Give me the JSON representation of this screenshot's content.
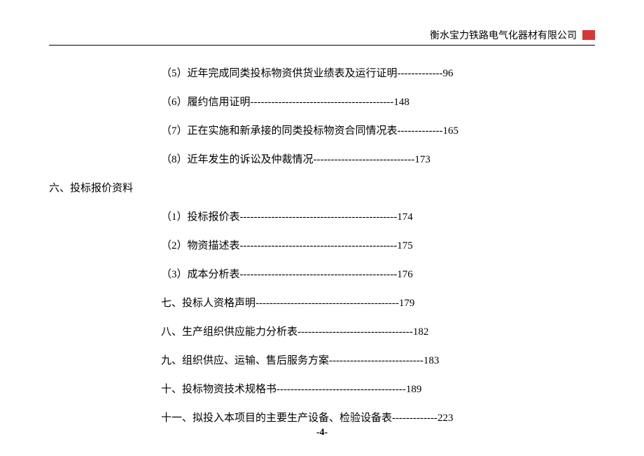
{
  "header": {
    "company": "衡水宝力铁路电气化器材有限公司"
  },
  "items": [
    {
      "type": "indent",
      "text": "（5）近年完成同类投标物资供货业绩表及运行证明",
      "dash": "-------------",
      "page": "96"
    },
    {
      "type": "indent",
      "text": "（6）履约信用证明",
      "dash": "-----------------------------------------",
      "page": "148"
    },
    {
      "type": "indent",
      "text": "（7）正在实施和新承接的同类投标物资合同情况表",
      "dash": "-------------",
      "page": "165"
    },
    {
      "type": "indent",
      "text": "（8）近年发生的诉讼及仲裁情况",
      "dash": "-----------------------------",
      "page": "173"
    },
    {
      "type": "section",
      "text": "六、投标报价资料",
      "dash": "",
      "page": ""
    },
    {
      "type": "indent",
      "text": "（1）投标报价表 ",
      "dash": "---------------------------------------------",
      "page": "174"
    },
    {
      "type": "indent",
      "text": "（2）物资描述表 ",
      "dash": "---------------------------------------------",
      "page": "175"
    },
    {
      "type": "indent",
      "text": "（3）成本分析表 ",
      "dash": "---------------------------------------------",
      "page": "176"
    },
    {
      "type": "list-item",
      "text": "七、投标人资格声明 ",
      "dash": "-----------------------------------------",
      "page": "179"
    },
    {
      "type": "list-item",
      "text": "八、生产组织供应能力分析表 ",
      "dash": "---------------------------------",
      "page": "182"
    },
    {
      "type": "list-item",
      "text": "九、组织供应、运输、售后服务方案 ",
      "dash": "---------------------------",
      "page": "183"
    },
    {
      "type": "list-item",
      "text": "十、投标物资技术规格书 ",
      "dash": "-------------------------------------",
      "page": "189"
    },
    {
      "type": "list-item",
      "text": "十一、拟投入本项目的主要生产设备、检验设备表 ",
      "dash": "-------------",
      "page": "223"
    }
  ],
  "footer": {
    "page_number": "-4-"
  }
}
